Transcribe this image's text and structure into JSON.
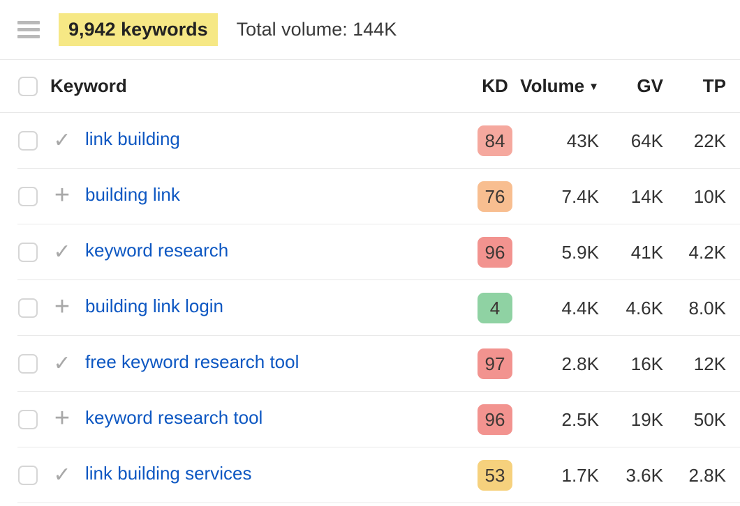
{
  "header": {
    "keywords_count": "9,942 keywords",
    "total_volume": "Total volume: 144K",
    "highlight_color": "#f6e885"
  },
  "icons": {
    "check-icon": "✓",
    "plus-icon": "+",
    "sort-desc": "▼"
  },
  "colors": {
    "link_blue": "#0d57c2",
    "kd_red": "#f2938f",
    "kd_salmon": "#f5a89e",
    "kd_orange": "#f8be90",
    "kd_yellow": "#f6d17d",
    "kd_green": "#8fd2a3"
  },
  "table": {
    "columns": {
      "keyword": "Keyword",
      "kd": "KD",
      "volume": "Volume",
      "gv": "GV",
      "tp": "TP"
    },
    "sort": {
      "column": "Volume",
      "direction": "desc"
    },
    "rows": [
      {
        "keyword": "link building",
        "icon": "check-icon",
        "kd": "84",
        "kd_color": "#f5a89e",
        "volume": "43K",
        "gv": "64K",
        "tp": "22K"
      },
      {
        "keyword": "building link",
        "icon": "plus-icon",
        "kd": "76",
        "kd_color": "#f8be90",
        "volume": "7.4K",
        "gv": "14K",
        "tp": "10K"
      },
      {
        "keyword": "keyword research",
        "icon": "check-icon",
        "kd": "96",
        "kd_color": "#f2938f",
        "volume": "5.9K",
        "gv": "41K",
        "tp": "4.2K"
      },
      {
        "keyword": "building link login",
        "icon": "plus-icon",
        "kd": "4",
        "kd_color": "#8fd2a3",
        "volume": "4.4K",
        "gv": "4.6K",
        "tp": "8.0K"
      },
      {
        "keyword": "free keyword research tool",
        "icon": "check-icon",
        "kd": "97",
        "kd_color": "#f2938f",
        "volume": "2.8K",
        "gv": "16K",
        "tp": "12K"
      },
      {
        "keyword": "keyword research tool",
        "icon": "plus-icon",
        "kd": "96",
        "kd_color": "#f2938f",
        "volume": "2.5K",
        "gv": "19K",
        "tp": "50K"
      },
      {
        "keyword": "link building services",
        "icon": "check-icon",
        "kd": "53",
        "kd_color": "#f6d17d",
        "volume": "1.7K",
        "gv": "3.6K",
        "tp": "2.8K"
      }
    ]
  }
}
